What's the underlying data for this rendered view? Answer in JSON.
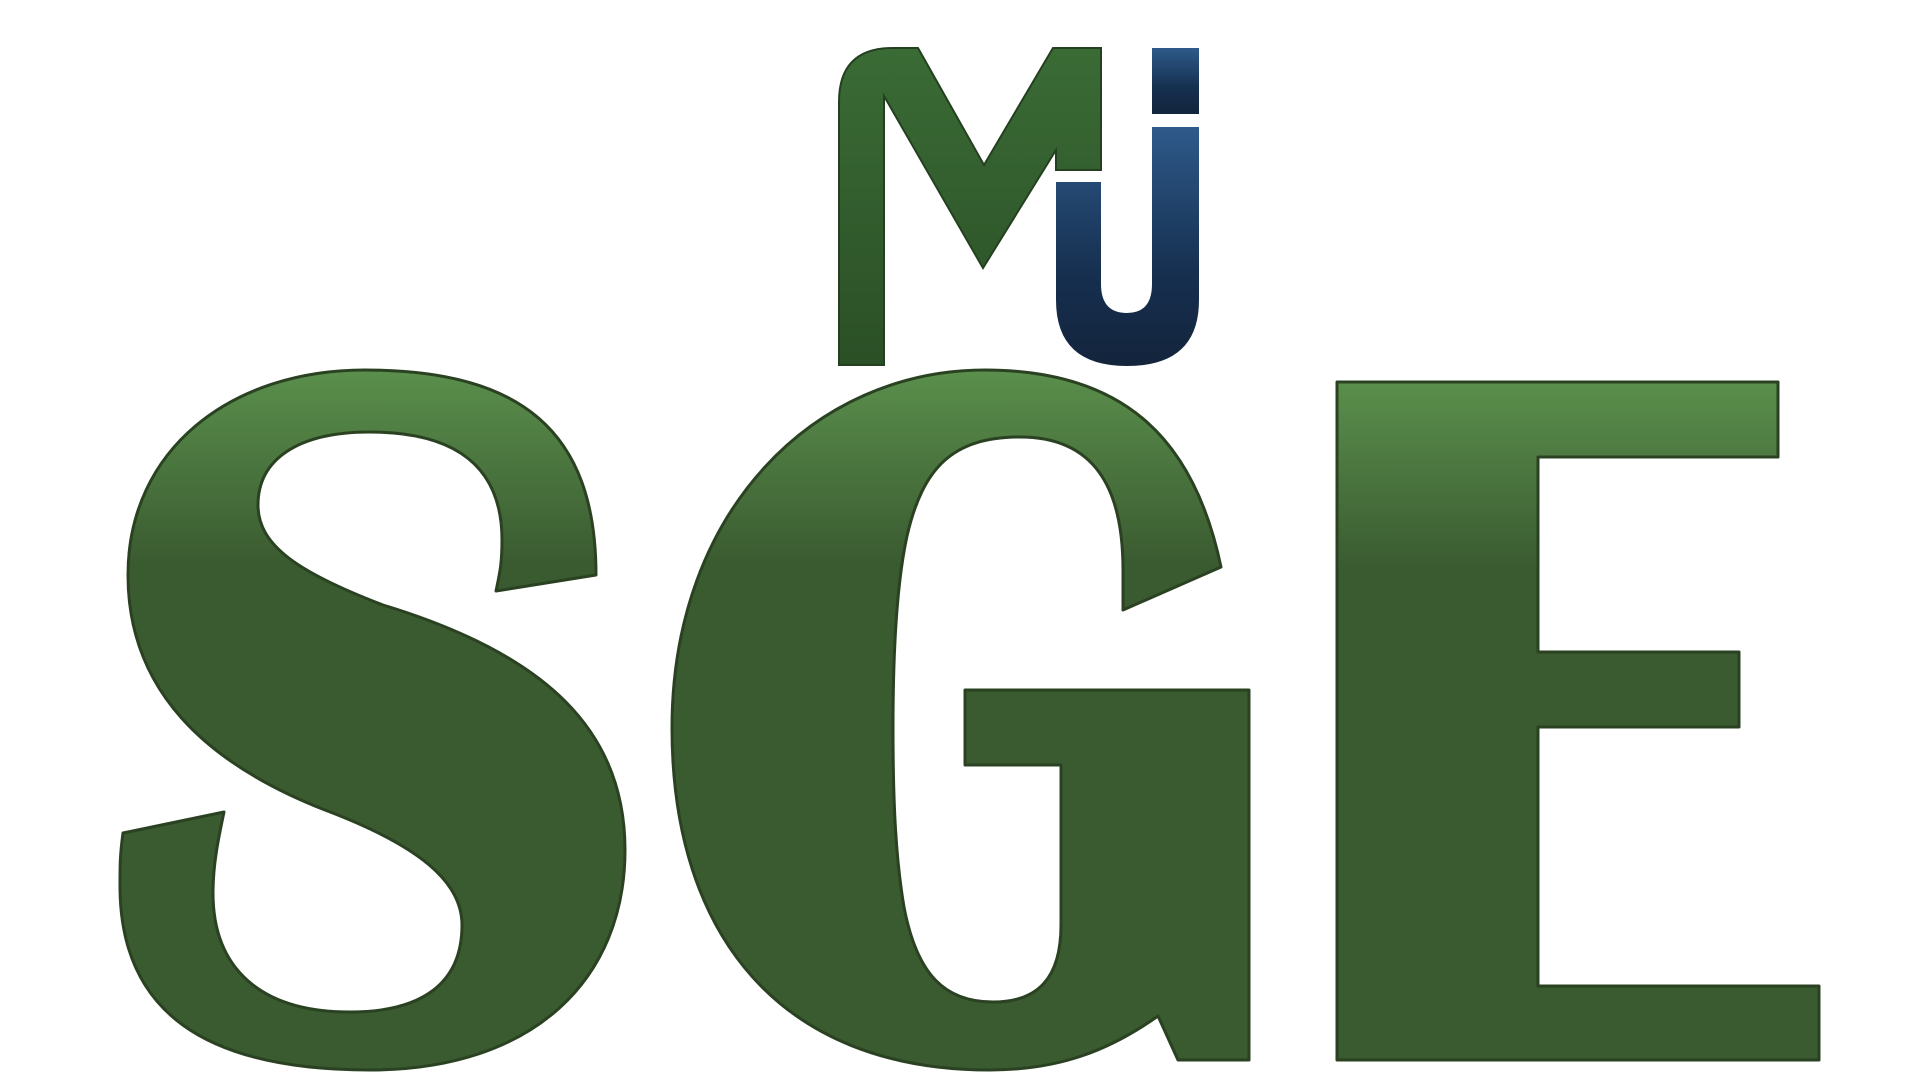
{
  "logo": {
    "monogram": "MJ",
    "wordmark": "SGE",
    "colors": {
      "green_light": "#5a8f4c",
      "green_dark": "#3a5a30",
      "green_stroke": "#2a4222",
      "blue_light": "#2e5a8a",
      "blue_dark": "#13243c",
      "background": "#ffffff"
    }
  }
}
